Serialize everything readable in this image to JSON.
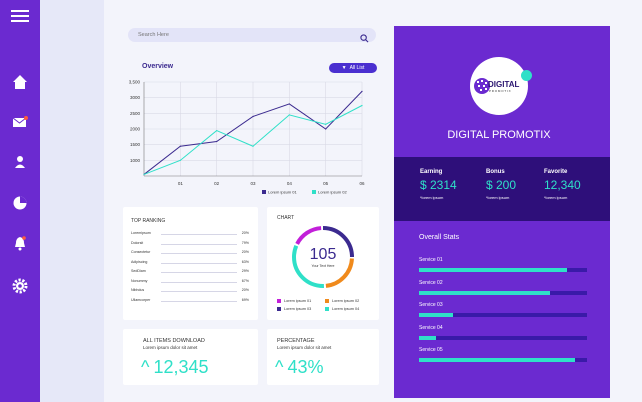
{
  "search": {
    "placeholder": "Search Here"
  },
  "overview": {
    "title": "Overview",
    "filter_label": "All List"
  },
  "chart_data": {
    "type": "line",
    "title": "Overview",
    "x": [
      "",
      "01",
      "02",
      "03",
      "04",
      "05",
      "06"
    ],
    "ylim": [
      500,
      3500
    ],
    "yticks": [
      "3,500",
      "3000",
      "2500",
      "2000",
      "1500",
      "1000"
    ],
    "series": [
      {
        "name": "Lorem ipsum 01",
        "color": "#3b2a8f",
        "values": [
          550,
          1450,
          1600,
          2400,
          2800,
          2000,
          3200
        ]
      },
      {
        "name": "Lorem ipsum 02",
        "color": "#2fe0c8",
        "values": [
          550,
          1000,
          1950,
          1450,
          2450,
          2150,
          2750
        ]
      }
    ],
    "grid": true,
    "legend": "bottom"
  },
  "ranking": {
    "title": "TOP RANKING",
    "rows": [
      {
        "name": "Loremipsum",
        "pct": "20%"
      },
      {
        "name": "Dolorsit",
        "pct": "79%"
      },
      {
        "name": "Consectetur",
        "pct": "20%"
      },
      {
        "name": "Adipiscing",
        "pct": "63%"
      },
      {
        "name": "SedDiam",
        "pct": "29%"
      },
      {
        "name": "Nonummy",
        "pct": "67%"
      },
      {
        "name": "Nibhdus",
        "pct": "20%"
      },
      {
        "name": "Ullamcorper",
        "pct": "69%"
      }
    ]
  },
  "donut": {
    "title": "CHART",
    "value": "105",
    "sub": "Your Text Here",
    "legend": [
      {
        "label": "Lorem ipsum 01",
        "color": "#c21fd9"
      },
      {
        "label": "Lorem ipsum 02",
        "color": "#f08a1c"
      },
      {
        "label": "Lorem ipsum 03",
        "color": "#3b2a8f"
      },
      {
        "label": "Lorem ipsum 04",
        "color": "#2fe0c8"
      }
    ]
  },
  "downloads": {
    "title": "ALL ITEMS DOWNLOAD",
    "sub": "Lorem ipsum dolor sit amet",
    "value": "12,345",
    "arrow": "^"
  },
  "percentage": {
    "title": "PERCENTAGE",
    "sub": "Lorem ipsum dolor sit amet",
    "value": "43%",
    "arrow": "^"
  },
  "profile": {
    "logo_text": "DIGITAL",
    "logo_sub": "PROMOTIX",
    "name": "DIGITAL PROMOTIX"
  },
  "stats": [
    {
      "label": "Earning",
      "value": "$ 2314",
      "sub": "*lorem ipsum"
    },
    {
      "label": "Bonus",
      "value": "$ 200",
      "sub": "*lorem ipsum"
    },
    {
      "label": "Favorite",
      "value": "12,340",
      "sub": "*lorem ipsum"
    }
  ],
  "overall": {
    "title": "Overall Stats",
    "services": [
      {
        "label": "Service 01",
        "progress": 0.88
      },
      {
        "label": "Service 02",
        "progress": 0.78
      },
      {
        "label": "Service 03",
        "progress": 0.2
      },
      {
        "label": "Service 04",
        "progress": 0.1
      },
      {
        "label": "Service 05",
        "progress": 0.93
      }
    ]
  },
  "icons": [
    "menu-icon",
    "home-icon",
    "mail-icon",
    "user-icon",
    "pie-chart-icon",
    "bell-icon",
    "gear-icon"
  ],
  "colors": {
    "primary": "#6b2ad0",
    "dark": "#2e0f7a",
    "accent": "#2fe0c8",
    "line1": "#3b2a8f"
  }
}
